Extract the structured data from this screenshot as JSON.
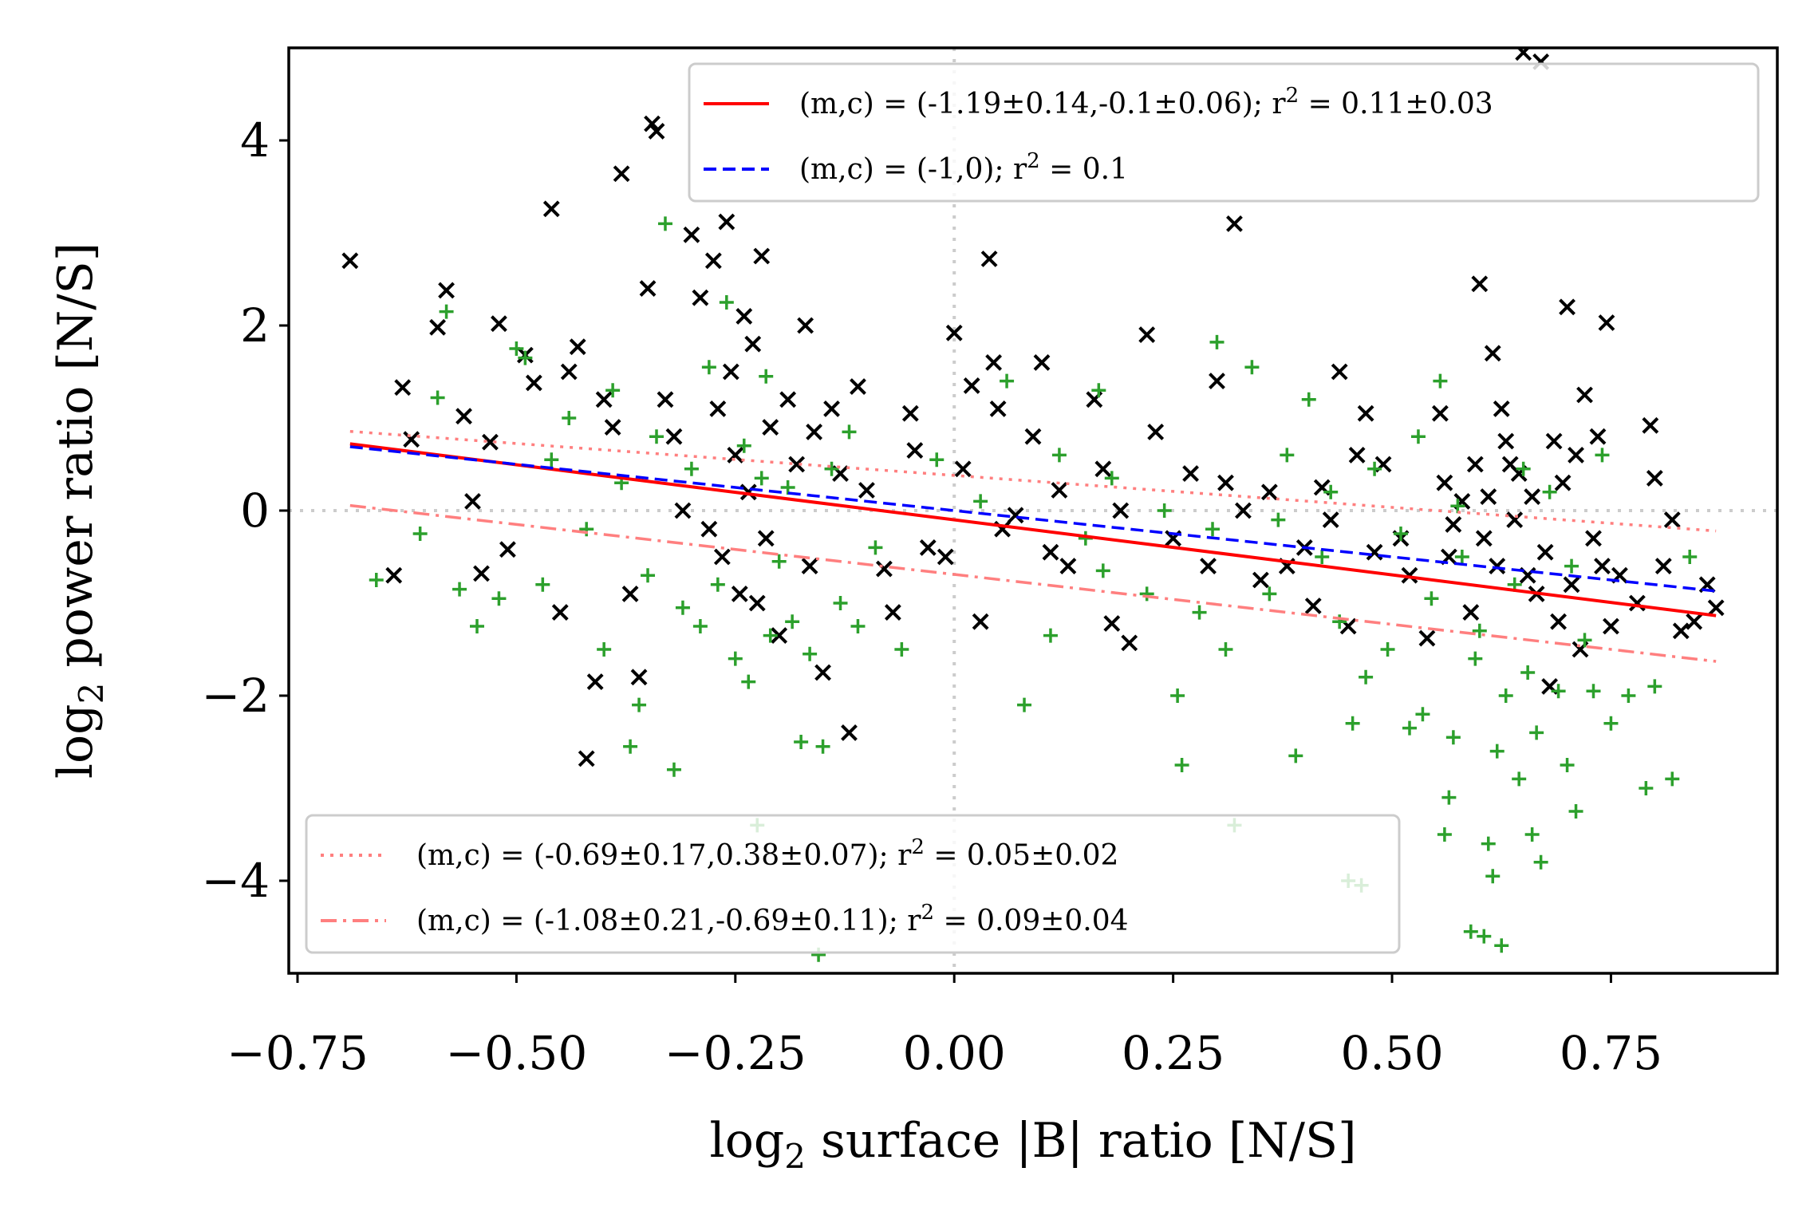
{
  "chart_data": {
    "type": "scatter",
    "title": "",
    "xlabel": "log₂ surface |B| ratio [N/S]",
    "ylabel": "log₂ power ratio [N/S]",
    "xlim": [
      -0.76,
      0.94
    ],
    "ylim": [
      -5,
      5
    ],
    "xticks": [
      -0.75,
      -0.5,
      -0.25,
      0.0,
      0.25,
      0.5,
      0.75
    ],
    "xtick_labels": [
      "−0.75",
      "−0.50",
      "−0.25",
      "0.00",
      "0.25",
      "0.50",
      "0.75"
    ],
    "yticks": [
      -4,
      -2,
      0,
      2,
      4
    ],
    "ytick_labels": [
      "−4",
      "−2",
      "0",
      "2",
      "4"
    ],
    "reference_lines": [
      {
        "orientation": "horizontal",
        "value": 0,
        "color": "#cccccc",
        "style": "dotted"
      },
      {
        "orientation": "vertical",
        "value": 0,
        "color": "#cccccc",
        "style": "dotted"
      }
    ],
    "series": [
      {
        "name": "black x",
        "marker": "x",
        "color": "#000000",
        "points": [
          [
            -0.69,
            2.7
          ],
          [
            -0.64,
            -0.7
          ],
          [
            -0.63,
            1.33
          ],
          [
            -0.62,
            0.77
          ],
          [
            -0.59,
            1.98
          ],
          [
            -0.58,
            2.38
          ],
          [
            -0.56,
            1.02
          ],
          [
            -0.55,
            0.1
          ],
          [
            -0.54,
            -0.68
          ],
          [
            -0.53,
            0.74
          ],
          [
            -0.52,
            2.02
          ],
          [
            -0.51,
            -0.42
          ],
          [
            -0.49,
            1.68
          ],
          [
            -0.48,
            1.38
          ],
          [
            -0.46,
            3.26
          ],
          [
            -0.45,
            -1.1
          ],
          [
            -0.44,
            1.5
          ],
          [
            -0.43,
            1.77
          ],
          [
            -0.42,
            -2.68
          ],
          [
            -0.41,
            -1.85
          ],
          [
            -0.4,
            1.2
          ],
          [
            -0.39,
            0.9
          ],
          [
            -0.38,
            3.64
          ],
          [
            -0.37,
            -0.9
          ],
          [
            -0.36,
            -1.8
          ],
          [
            -0.35,
            2.4
          ],
          [
            -0.345,
            4.18
          ],
          [
            -0.34,
            4.1
          ],
          [
            -0.33,
            1.2
          ],
          [
            -0.32,
            0.8
          ],
          [
            -0.31,
            0.0
          ],
          [
            -0.3,
            2.98
          ],
          [
            -0.29,
            2.3
          ],
          [
            -0.28,
            -0.2
          ],
          [
            -0.275,
            2.7
          ],
          [
            -0.27,
            1.1
          ],
          [
            -0.265,
            -0.5
          ],
          [
            -0.26,
            3.12
          ],
          [
            -0.255,
            1.5
          ],
          [
            -0.25,
            0.6
          ],
          [
            -0.245,
            -0.9
          ],
          [
            -0.24,
            2.1
          ],
          [
            -0.235,
            0.2
          ],
          [
            -0.23,
            1.8
          ],
          [
            -0.225,
            -1.0
          ],
          [
            -0.22,
            2.75
          ],
          [
            -0.215,
            -0.3
          ],
          [
            -0.21,
            0.9
          ],
          [
            -0.2,
            -1.35
          ],
          [
            -0.19,
            1.2
          ],
          [
            -0.18,
            0.5
          ],
          [
            -0.17,
            2.0
          ],
          [
            -0.165,
            -0.6
          ],
          [
            -0.16,
            0.85
          ],
          [
            -0.15,
            -1.75
          ],
          [
            -0.14,
            1.1
          ],
          [
            -0.13,
            0.4
          ],
          [
            -0.12,
            -2.4
          ],
          [
            -0.11,
            1.34
          ],
          [
            -0.1,
            0.22
          ],
          [
            -0.08,
            -0.63
          ],
          [
            -0.07,
            -1.1
          ],
          [
            -0.05,
            1.05
          ],
          [
            -0.045,
            0.65
          ],
          [
            -0.03,
            -0.4
          ],
          [
            -0.01,
            -0.5
          ],
          [
            0.0,
            1.92
          ],
          [
            0.01,
            0.45
          ],
          [
            0.02,
            1.35
          ],
          [
            0.03,
            -1.2
          ],
          [
            0.04,
            2.72
          ],
          [
            0.045,
            1.6
          ],
          [
            0.05,
            1.1
          ],
          [
            0.055,
            -0.2
          ],
          [
            0.07,
            -0.05
          ],
          [
            0.09,
            0.8
          ],
          [
            0.1,
            1.6
          ],
          [
            0.11,
            -0.45
          ],
          [
            0.12,
            0.22
          ],
          [
            0.13,
            -0.6
          ],
          [
            0.16,
            1.2
          ],
          [
            0.17,
            0.45
          ],
          [
            0.18,
            -1.22
          ],
          [
            0.19,
            0.0
          ],
          [
            0.2,
            -1.43
          ],
          [
            0.22,
            1.9
          ],
          [
            0.23,
            0.85
          ],
          [
            0.25,
            -0.3
          ],
          [
            0.27,
            0.4
          ],
          [
            0.29,
            -0.6
          ],
          [
            0.3,
            1.4
          ],
          [
            0.31,
            0.3
          ],
          [
            0.32,
            3.1
          ],
          [
            0.33,
            0.0
          ],
          [
            0.35,
            -0.75
          ],
          [
            0.36,
            0.2
          ],
          [
            0.38,
            -0.6
          ],
          [
            0.4,
            -0.4
          ],
          [
            0.41,
            -1.03
          ],
          [
            0.42,
            0.25
          ],
          [
            0.43,
            -0.1
          ],
          [
            0.44,
            1.5
          ],
          [
            0.45,
            -1.25
          ],
          [
            0.46,
            0.6
          ],
          [
            0.47,
            1.05
          ],
          [
            0.48,
            -0.45
          ],
          [
            0.49,
            0.5
          ],
          [
            0.51,
            -0.3
          ],
          [
            0.52,
            -0.7
          ],
          [
            0.54,
            -1.38
          ],
          [
            0.555,
            1.05
          ],
          [
            0.56,
            0.3
          ],
          [
            0.565,
            -0.5
          ],
          [
            0.57,
            -0.15
          ],
          [
            0.58,
            0.1
          ],
          [
            0.59,
            -1.1
          ],
          [
            0.595,
            0.5
          ],
          [
            0.6,
            2.45
          ],
          [
            0.605,
            -0.3
          ],
          [
            0.61,
            0.15
          ],
          [
            0.615,
            1.7
          ],
          [
            0.62,
            -0.6
          ],
          [
            0.625,
            1.1
          ],
          [
            0.63,
            0.75
          ],
          [
            0.635,
            0.5
          ],
          [
            0.64,
            -0.1
          ],
          [
            0.645,
            0.4
          ],
          [
            0.65,
            4.95
          ],
          [
            0.655,
            -0.7
          ],
          [
            0.66,
            0.15
          ],
          [
            0.665,
            -0.9
          ],
          [
            0.67,
            4.85
          ],
          [
            0.675,
            -0.45
          ],
          [
            0.68,
            -1.9
          ],
          [
            0.685,
            0.75
          ],
          [
            0.69,
            -1.2
          ],
          [
            0.695,
            0.3
          ],
          [
            0.7,
            2.2
          ],
          [
            0.705,
            -0.8
          ],
          [
            0.71,
            0.6
          ],
          [
            0.715,
            -1.5
          ],
          [
            0.72,
            1.25
          ],
          [
            0.73,
            -0.3
          ],
          [
            0.735,
            0.8
          ],
          [
            0.74,
            -0.6
          ],
          [
            0.745,
            2.03
          ],
          [
            0.75,
            -1.25
          ],
          [
            0.76,
            -0.7
          ],
          [
            0.78,
            -1.0
          ],
          [
            0.795,
            0.92
          ],
          [
            0.8,
            0.35
          ],
          [
            0.81,
            -0.6
          ],
          [
            0.82,
            -0.1
          ],
          [
            0.83,
            -1.3
          ],
          [
            0.845,
            -1.2
          ],
          [
            0.86,
            -0.8
          ],
          [
            0.87,
            -1.05
          ]
        ]
      },
      {
        "name": "green +",
        "marker": "+",
        "color": "#2ca02c",
        "points": [
          [
            -0.66,
            -0.75
          ],
          [
            -0.61,
            -0.25
          ],
          [
            -0.59,
            1.22
          ],
          [
            -0.58,
            2.15
          ],
          [
            -0.565,
            -0.85
          ],
          [
            -0.545,
            -1.25
          ],
          [
            -0.52,
            -0.95
          ],
          [
            -0.5,
            1.75
          ],
          [
            -0.49,
            1.65
          ],
          [
            -0.47,
            -0.8
          ],
          [
            -0.46,
            0.55
          ],
          [
            -0.44,
            1.0
          ],
          [
            -0.42,
            -0.2
          ],
          [
            -0.4,
            -1.5
          ],
          [
            -0.39,
            1.3
          ],
          [
            -0.38,
            0.3
          ],
          [
            -0.37,
            -2.55
          ],
          [
            -0.36,
            -2.1
          ],
          [
            -0.35,
            -0.7
          ],
          [
            -0.34,
            0.8
          ],
          [
            -0.33,
            3.1
          ],
          [
            -0.32,
            -2.8
          ],
          [
            -0.31,
            -1.05
          ],
          [
            -0.3,
            0.45
          ],
          [
            -0.29,
            -1.25
          ],
          [
            -0.28,
            1.55
          ],
          [
            -0.27,
            -0.8
          ],
          [
            -0.26,
            2.25
          ],
          [
            -0.25,
            -1.6
          ],
          [
            -0.24,
            0.7
          ],
          [
            -0.235,
            -1.85
          ],
          [
            -0.225,
            -3.4
          ],
          [
            -0.22,
            0.35
          ],
          [
            -0.215,
            1.45
          ],
          [
            -0.21,
            -1.35
          ],
          [
            -0.2,
            -0.55
          ],
          [
            -0.19,
            0.25
          ],
          [
            -0.185,
            -1.2
          ],
          [
            -0.175,
            -2.5
          ],
          [
            -0.165,
            -1.55
          ],
          [
            -0.155,
            -4.8
          ],
          [
            -0.15,
            -2.55
          ],
          [
            -0.14,
            0.45
          ],
          [
            -0.13,
            -1.0
          ],
          [
            -0.12,
            0.85
          ],
          [
            -0.11,
            -1.25
          ],
          [
            -0.09,
            -0.4
          ],
          [
            -0.06,
            -1.5
          ],
          [
            -0.02,
            0.55
          ],
          [
            0.03,
            0.1
          ],
          [
            0.06,
            1.4
          ],
          [
            0.08,
            -2.1
          ],
          [
            0.11,
            -1.35
          ],
          [
            0.12,
            0.6
          ],
          [
            0.15,
            -0.3
          ],
          [
            0.165,
            1.3
          ],
          [
            0.17,
            -0.65
          ],
          [
            0.18,
            0.35
          ],
          [
            0.22,
            -0.9
          ],
          [
            0.24,
            0.0
          ],
          [
            0.255,
            -2.0
          ],
          [
            0.26,
            -2.75
          ],
          [
            0.28,
            -1.1
          ],
          [
            0.295,
            -0.2
          ],
          [
            0.3,
            1.82
          ],
          [
            0.31,
            -1.5
          ],
          [
            0.32,
            -3.4
          ],
          [
            0.34,
            1.55
          ],
          [
            0.36,
            -0.9
          ],
          [
            0.37,
            -0.1
          ],
          [
            0.38,
            0.6
          ],
          [
            0.39,
            -2.65
          ],
          [
            0.405,
            1.2
          ],
          [
            0.42,
            -0.5
          ],
          [
            0.43,
            0.2
          ],
          [
            0.44,
            -1.2
          ],
          [
            0.45,
            -4.0
          ],
          [
            0.455,
            -2.3
          ],
          [
            0.465,
            -4.05
          ],
          [
            0.47,
            -1.8
          ],
          [
            0.48,
            0.45
          ],
          [
            0.495,
            -1.5
          ],
          [
            0.51,
            -0.25
          ],
          [
            0.52,
            -2.35
          ],
          [
            0.53,
            0.8
          ],
          [
            0.535,
            -2.2
          ],
          [
            0.545,
            -0.95
          ],
          [
            0.555,
            1.4
          ],
          [
            0.56,
            -3.5
          ],
          [
            0.565,
            -3.1
          ],
          [
            0.57,
            -2.45
          ],
          [
            0.575,
            0.05
          ],
          [
            0.58,
            -0.5
          ],
          [
            0.59,
            -4.55
          ],
          [
            0.595,
            -1.6
          ],
          [
            0.6,
            -1.3
          ],
          [
            0.605,
            -4.6
          ],
          [
            0.61,
            -3.6
          ],
          [
            0.615,
            -3.95
          ],
          [
            0.62,
            -2.6
          ],
          [
            0.625,
            -4.7
          ],
          [
            0.63,
            -2.0
          ],
          [
            0.64,
            -0.8
          ],
          [
            0.645,
            -2.9
          ],
          [
            0.65,
            0.45
          ],
          [
            0.655,
            -1.75
          ],
          [
            0.66,
            -3.5
          ],
          [
            0.665,
            -2.4
          ],
          [
            0.67,
            -3.8
          ],
          [
            0.68,
            0.2
          ],
          [
            0.69,
            -1.95
          ],
          [
            0.7,
            -2.75
          ],
          [
            0.705,
            -0.6
          ],
          [
            0.71,
            -3.25
          ],
          [
            0.72,
            -1.4
          ],
          [
            0.73,
            -1.95
          ],
          [
            0.74,
            0.6
          ],
          [
            0.75,
            -2.3
          ],
          [
            0.77,
            -2.0
          ],
          [
            0.79,
            -3.0
          ],
          [
            0.8,
            -1.9
          ],
          [
            0.82,
            -2.9
          ],
          [
            0.84,
            -0.5
          ]
        ]
      }
    ],
    "fit_lines": [
      {
        "label": "(m,c) = (-1.19±0.14,-0.1±0.06); r² = 0.11±0.03",
        "slope": -1.19,
        "intercept": -0.1,
        "x_range": [
          -0.69,
          0.87
        ],
        "color": "#ff0000",
        "style": "solid"
      },
      {
        "label": "(m,c) = (-1,0); r² = 0.1",
        "slope": -1.0,
        "intercept": 0.0,
        "x_range": [
          -0.69,
          0.87
        ],
        "color": "#0000ff",
        "style": "dashed"
      },
      {
        "label": "(m,c) = (-0.69±0.17,0.38±0.07); r² = 0.05±0.02",
        "slope": -0.69,
        "intercept": 0.38,
        "x_range": [
          -0.69,
          0.87
        ],
        "color": "#ff7f7f",
        "style": "dotted"
      },
      {
        "label": "(m,c) = (-1.08±0.21,-0.69±0.11); r² = 0.09±0.04",
        "slope": -1.08,
        "intercept": -0.69,
        "x_range": [
          -0.69,
          0.87
        ],
        "color": "#ff7f7f",
        "style": "dashdot"
      }
    ],
    "legends": [
      {
        "placement": "top-right",
        "entries": [
          0,
          1
        ]
      },
      {
        "placement": "bottom-left",
        "entries": [
          2,
          3
        ]
      }
    ]
  }
}
